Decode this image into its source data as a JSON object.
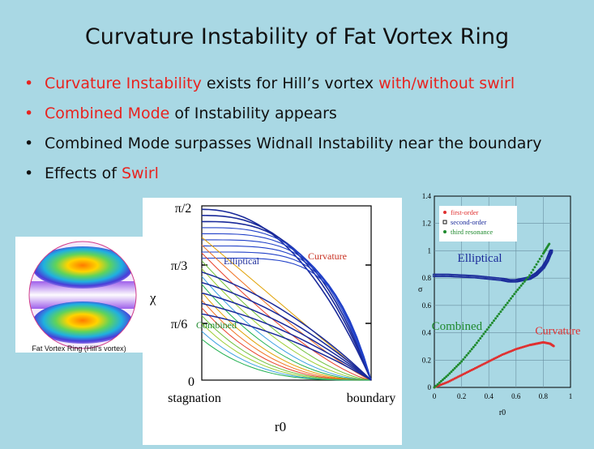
{
  "slide": {
    "title": "Curvature Instability of Fat Vortex Ring",
    "bullets": [
      {
        "parts": [
          {
            "text": "Curvature Instability",
            "red": true
          },
          {
            "text": " exists for Hill’s vortex ",
            "red": false
          },
          {
            "text": "with/without swirl",
            "red": true
          }
        ],
        "dot_red": true
      },
      {
        "parts": [
          {
            "text": "Combined Mode",
            "red": true
          },
          {
            "text": " of Instability appears",
            "red": false
          }
        ],
        "dot_red": true
      },
      {
        "parts": [
          {
            "text": "Combined Mode surpasses Widnall Instability near the boundary",
            "red": false
          }
        ],
        "dot_red": false
      },
      {
        "parts": [
          {
            "text": "Effects of ",
            "red": false
          },
          {
            "text": "Swirl",
            "red": true
          }
        ],
        "dot_red": false
      }
    ],
    "bullet_symbol": "•",
    "ring_caption": "Fat Vortex Ring (Hill’s vortex)"
  },
  "mode_diagram": {
    "y_ticks": [
      "π/2",
      "π/3",
      "π/6",
      "0"
    ],
    "y_label": "χ",
    "x_tick_left": "stagnation",
    "x_tick_right": "boundary",
    "x_label": "r0",
    "labels": {
      "elliptical": "Elliptical",
      "curvature": "Curvature",
      "combined": "Combined"
    }
  },
  "chart_data": {
    "type": "scatter",
    "xlabel": "r0",
    "ylabel": "σ",
    "xlim": [
      0,
      1
    ],
    "ylim": [
      0,
      1.4
    ],
    "x_ticks": [
      "0",
      "0.2",
      "0.4",
      "0.6",
      "0.8",
      "1"
    ],
    "y_ticks": [
      "0",
      "0.2",
      "0.4",
      "0.6",
      "0.8",
      "1",
      "1.2",
      "1.4"
    ],
    "grid": true,
    "legend_position": "top-left",
    "legend": [
      "first-order",
      "second-order",
      "third resonance"
    ],
    "annotations": [
      "Elliptical",
      "Combined",
      "Curvature"
    ],
    "series": [
      {
        "name": "first-order",
        "color": "#e03030",
        "marker": "dot",
        "x": [
          0,
          0.1,
          0.2,
          0.3,
          0.4,
          0.5,
          0.6,
          0.7,
          0.75,
          0.8,
          0.85,
          0.88
        ],
        "y": [
          0,
          0.04,
          0.09,
          0.14,
          0.19,
          0.24,
          0.28,
          0.31,
          0.32,
          0.33,
          0.32,
          0.3
        ]
      },
      {
        "name": "second-order",
        "color": "#1a2a9a",
        "marker": "square",
        "x": [
          0,
          0.1,
          0.2,
          0.3,
          0.4,
          0.5,
          0.55,
          0.6,
          0.65,
          0.7,
          0.75,
          0.8,
          0.83,
          0.85,
          0.86
        ],
        "y": [
          0.82,
          0.82,
          0.815,
          0.81,
          0.8,
          0.79,
          0.78,
          0.78,
          0.79,
          0.8,
          0.83,
          0.88,
          0.93,
          0.98,
          1.0
        ]
      },
      {
        "name": "third resonance",
        "color": "#1f8a2e",
        "marker": "dot",
        "x": [
          0,
          0.1,
          0.2,
          0.3,
          0.4,
          0.5,
          0.6,
          0.7,
          0.8,
          0.85
        ],
        "y": [
          0,
          0.09,
          0.19,
          0.31,
          0.44,
          0.57,
          0.7,
          0.82,
          0.98,
          1.06
        ]
      }
    ],
    "colors": {
      "elliptical": "#1a2a9a",
      "combined": "#1f8a2e",
      "curvature": "#e03030"
    }
  }
}
